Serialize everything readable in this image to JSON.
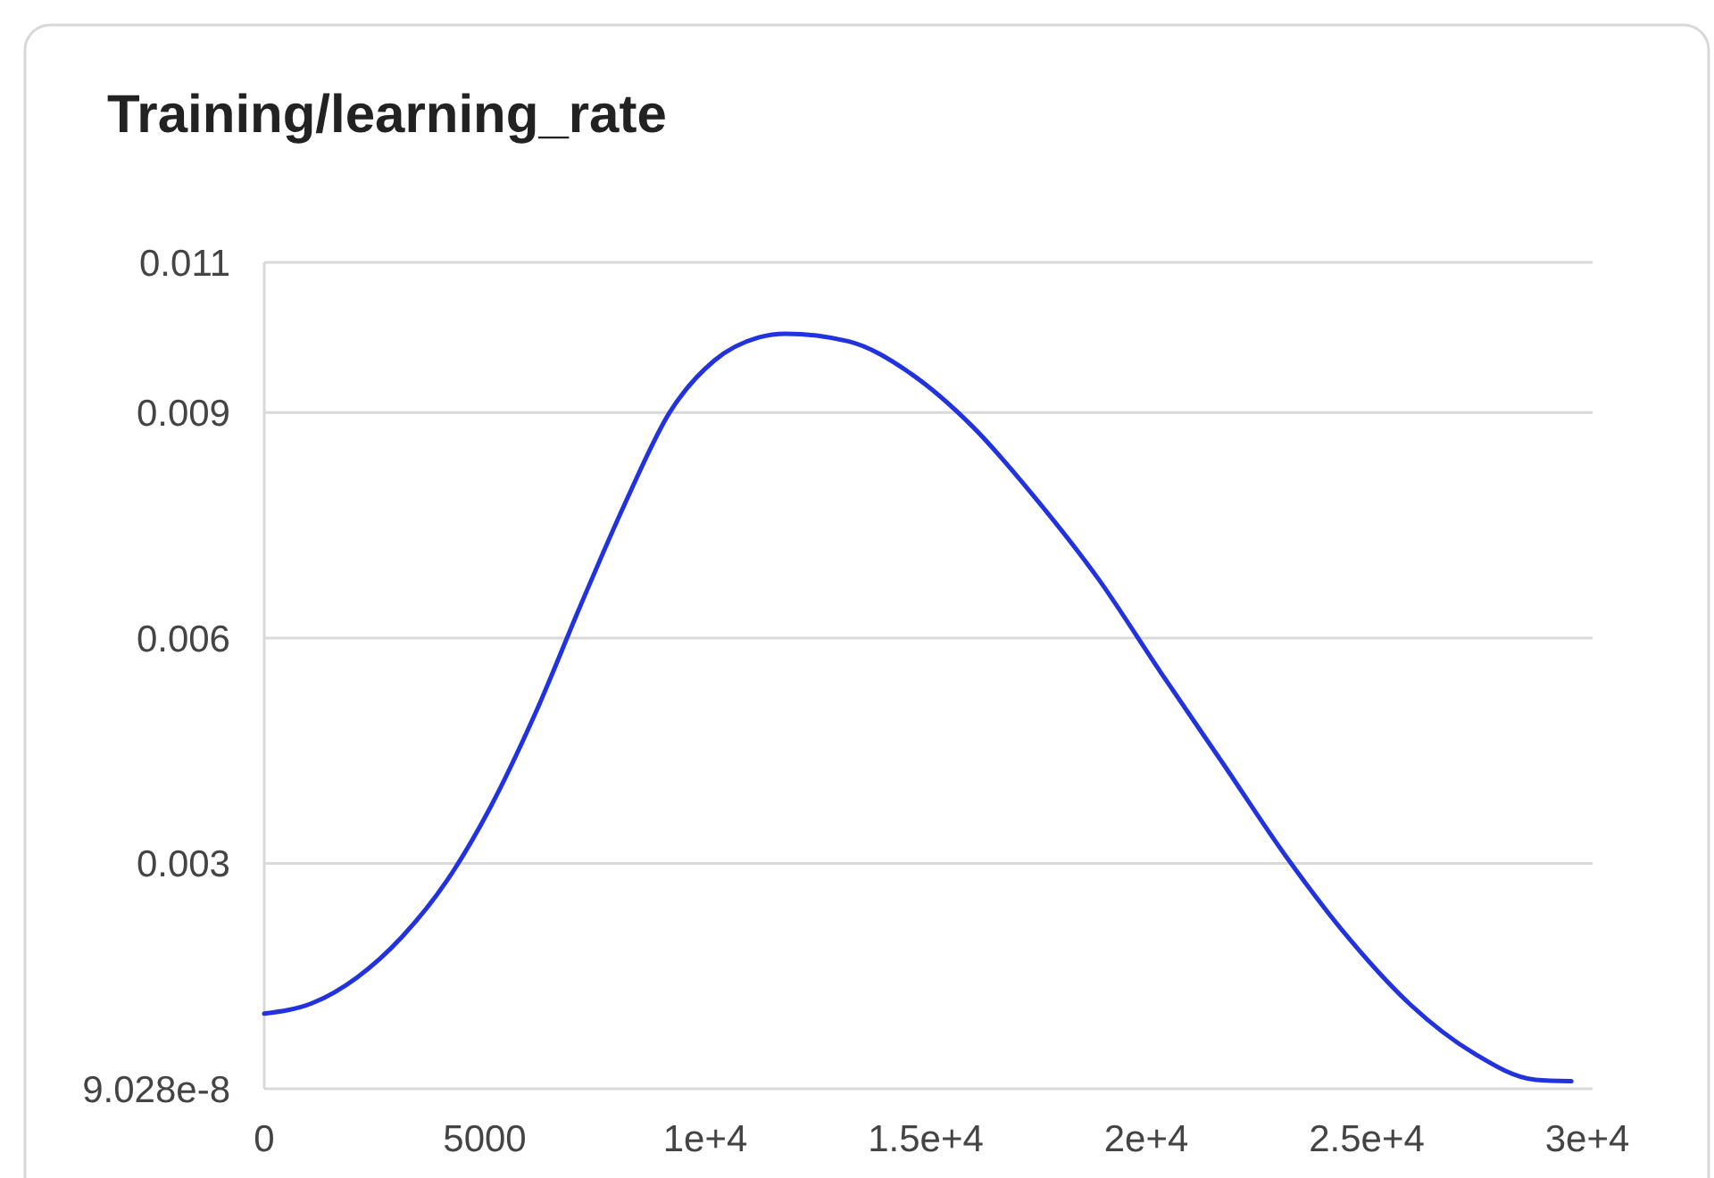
{
  "chart_data": {
    "type": "line",
    "title": "Training/learning_rate",
    "x": [
      0,
      1090,
      2100,
      3120,
      4130,
      5140,
      6150,
      7170,
      8180,
      9190,
      10200,
      11210,
      11820,
      13240,
      14660,
      16070,
      17490,
      18910,
      20320,
      21740,
      23160,
      24570,
      25990,
      27410,
      28830,
      29640
    ],
    "series": [
      {
        "color": "#2233dd",
        "values": [
          0.001,
          0.00114,
          0.00148,
          0.00202,
          0.00276,
          0.00376,
          0.005,
          0.00643,
          0.00779,
          0.009,
          0.00969,
          0.01,
          0.01005,
          0.00995,
          0.00952,
          0.00881,
          0.00786,
          0.00679,
          0.00555,
          0.00433,
          0.0031,
          0.00202,
          0.00112,
          0.00048,
          0.00012,
          0.0001
        ]
      }
    ],
    "xlim": [
      0,
      30000
    ],
    "xticks": [
      0,
      5000,
      {
        "value": 10000,
        "label": "1e+4"
      },
      {
        "value": 15000,
        "label": "1.5e+4"
      },
      {
        "value": 20000,
        "label": "2e+4"
      },
      {
        "value": 25000,
        "label": "2.5e+4"
      },
      {
        "value": 30000,
        "label": "3e+4"
      }
    ],
    "ylim": [
      9.028e-08,
      0.011
    ],
    "yticks": [
      {
        "value": 9.028e-08,
        "label": "9.028e-8"
      },
      0.003,
      0.006,
      0.009,
      0.011
    ],
    "grid": "y",
    "marker": "none",
    "line_style": "solid"
  }
}
